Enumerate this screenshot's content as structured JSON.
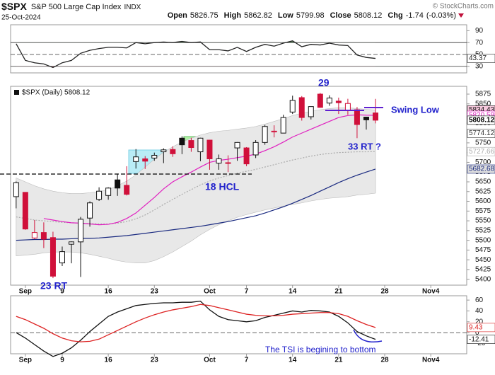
{
  "header": {
    "symbol": "$SPX",
    "name": "S&P 500 Large Cap Index",
    "exchange": "INDX",
    "date": "25-Oct-2024",
    "copyright": "© StockCharts.com",
    "quote": [
      {
        "label": "Open",
        "value": 5826.75
      },
      {
        "label": "High",
        "value": 5862.82
      },
      {
        "label": "Low",
        "value": 5799.98
      },
      {
        "label": "Close",
        "value": 5808.12
      },
      {
        "label": "Chg",
        "value": -1.74,
        "note": "(-0.03%)"
      }
    ]
  },
  "chart_data": [
    {
      "type": "line",
      "xlim": [
        -0.6,
        48.9
      ],
      "ylim": [
        19,
        100
      ],
      "yticks": [
        90,
        70,
        50,
        30
      ],
      "levels": [
        {
          "value": 70
        },
        {
          "value": 50,
          "dashed": true
        },
        {
          "value": 30
        }
      ],
      "shade": true,
      "x": [
        0,
        1,
        2,
        3,
        4,
        5,
        6,
        7,
        8,
        9,
        10,
        11,
        12,
        13,
        14,
        15,
        16,
        17,
        18,
        19,
        20,
        21,
        22,
        23,
        24,
        25,
        26,
        27,
        28,
        29,
        30,
        31,
        32,
        33,
        34,
        35,
        36,
        37,
        38,
        39
      ],
      "series": [
        {
          "color": "#222222",
          "label_bg": "#ffffff",
          "values": [
            68,
            40,
            36,
            34,
            28,
            36,
            40,
            52,
            57,
            60,
            62,
            62,
            61,
            70,
            68,
            70,
            71,
            70,
            72,
            70,
            71,
            58,
            58,
            56,
            62,
            55,
            62,
            67,
            64,
            69,
            73,
            63,
            67,
            66,
            69,
            66,
            65,
            49,
            45,
            43.37
          ]
        }
      ]
    },
    {
      "type": "candlestick",
      "legend": "$SPX (Daily) 5808.12",
      "xlim": [
        -0.6,
        48.9
      ],
      "ylim": [
        5385,
        5895
      ],
      "yticks": [
        5400,
        5425,
        5450,
        5475,
        5500,
        5525,
        5550,
        5575,
        5600,
        5625,
        5650,
        5675,
        5700,
        5725,
        5750,
        5775,
        5800,
        5825,
        5850,
        5875
      ],
      "xticks": [
        {
          "value": 1,
          "label": "Sep"
        },
        {
          "value": 5,
          "label": "9"
        },
        {
          "value": 10,
          "label": "16"
        },
        {
          "value": 15,
          "label": "23"
        },
        {
          "value": 21,
          "label": "Oct"
        },
        {
          "value": 25,
          "label": "7"
        },
        {
          "value": 30,
          "label": "14"
        },
        {
          "value": 35,
          "label": "21"
        },
        {
          "value": 40,
          "label": "28"
        },
        {
          "value": 45,
          "label": "Nov4"
        }
      ],
      "x": [
        0,
        1,
        2,
        3,
        4,
        5,
        6,
        7,
        8,
        9,
        10,
        11,
        12,
        13,
        14,
        15,
        16,
        17,
        18,
        19,
        20,
        21,
        22,
        23,
        24,
        25,
        26,
        27,
        28,
        29,
        30,
        31,
        32,
        33,
        34,
        35,
        36,
        37,
        38,
        39
      ],
      "open": [
        5612,
        5623,
        5506,
        5520,
        5507,
        5442,
        5490,
        5496,
        5557,
        5605,
        5615,
        5655,
        5641,
        5702,
        5709,
        5711,
        5727,
        5733,
        5762,
        5756,
        5727,
        5757,
        5698,
        5698,
        5737,
        5737,
        5719,
        5751,
        5778,
        5775,
        5829,
        5866,
        5817,
        5875,
        5852,
        5857,
        5833,
        5835,
        5816,
        5826.75
      ],
      "high": [
        5651,
        5623,
        5552,
        5546,
        5522,
        5484,
        5497,
        5560,
        5600,
        5636,
        5636,
        5671,
        5690,
        5734,
        5716,
        5725,
        5736,
        5741,
        5767,
        5763,
        5763,
        5758,
        5720,
        5718,
        5752,
        5739,
        5757,
        5796,
        5795,
        5822,
        5871,
        5870,
        5843,
        5878,
        5872,
        5866,
        5863,
        5842,
        5817,
        5862.82
      ],
      "low": [
        5582,
        5527,
        5503,
        5480,
        5403,
        5434,
        5441,
        5406,
        5535,
        5601,
        5604,
        5614,
        5615,
        5684,
        5683,
        5704,
        5698,
        5714,
        5721,
        5727,
        5703,
        5681,
        5681,
        5675,
        5704,
        5690,
        5711,
        5745,
        5764,
        5775,
        5824,
        5807,
        5810,
        5840,
        5845,
        5824,
        5822,
        5762,
        5784,
        5799.98
      ],
      "close": [
        5648,
        5529,
        5520,
        5503,
        5408,
        5471,
        5496,
        5554,
        5596,
        5626,
        5634,
        5634,
        5618,
        5714,
        5703,
        5718,
        5732,
        5722,
        5745,
        5738,
        5762,
        5709,
        5709,
        5699,
        5751,
        5696,
        5751,
        5792,
        5780,
        5815,
        5859,
        5815,
        5843,
        5841,
        5865,
        5853,
        5851,
        5797,
        5809,
        5808.12
      ],
      "up_color": "#111111",
      "down_color": "#d0103a",
      "band": {
        "color": "#e8e8e8",
        "label_bg": "#f6c8dc",
        "upper": [
          5660,
          5650,
          5640,
          5632,
          5626,
          5622,
          5620,
          5620,
          5622,
          5625,
          5630,
          5640,
          5652,
          5668,
          5688,
          5708,
          5726,
          5740,
          5752,
          5762,
          5770,
          5776,
          5780,
          5782,
          5785,
          5788,
          5792,
          5798,
          5805,
          5812,
          5820,
          5826,
          5831,
          5835,
          5838,
          5840,
          5840,
          5838,
          5836,
          5834.43
        ],
        "lower": [
          5460,
          5462,
          5464,
          5468,
          5470,
          5470,
          5470,
          5468,
          5464,
          5459,
          5454,
          5448,
          5444,
          5442,
          5442,
          5448,
          5458,
          5470,
          5484,
          5498,
          5514,
          5528,
          5540,
          5550,
          5559,
          5566,
          5572,
          5578,
          5583,
          5588,
          5592,
          5596,
          5601,
          5605,
          5608,
          5610,
          5612,
          5616,
          5618,
          5620.89
        ]
      },
      "overlays": [
        {
          "color": "#aaaaaa",
          "dotted": true,
          "label_bg": "#ffffff",
          "values": [
            5560,
            5556,
            5552,
            5550,
            5548,
            5546,
            5545,
            5544,
            5543,
            5542,
            5542,
            5544,
            5548,
            5555,
            5565,
            5578,
            5592,
            5605,
            5618,
            5630,
            5642,
            5652,
            5660,
            5666,
            5672,
            5677,
            5682,
            5688,
            5694,
            5700,
            5706,
            5711,
            5716,
            5720,
            5723,
            5725,
            5726,
            5727,
            5727,
            5727.66
          ]
        },
        {
          "color": "#e020c0",
          "label_bg": "#ffffff",
          "values": [
            null,
            null,
            null,
            5556,
            5552,
            5548,
            5545,
            5544,
            5542,
            5540,
            5541,
            5546,
            5556,
            5570,
            5590,
            5610,
            5632,
            5650,
            5663,
            5675,
            5688,
            5700,
            5705,
            5708,
            5712,
            5716,
            5721,
            5730,
            5740,
            5752,
            5765,
            5775,
            5785,
            5795,
            5805,
            5815,
            5820,
            5822,
            5821,
            5820.59
          ]
        },
        {
          "color": "#1a2a80",
          "label_bg": "#dddddd",
          "values": [
            5500,
            5501,
            5502,
            5502,
            5503,
            5503,
            5504,
            5505,
            5505,
            5506,
            5508,
            5510,
            5512,
            5515,
            5518,
            5521,
            5524,
            5527,
            5530,
            5533,
            5536,
            5540,
            5544,
            5548,
            5553,
            5558,
            5563,
            5570,
            5578,
            5586,
            5595,
            5605,
            5615,
            5626,
            5637,
            5648,
            5658,
            5667,
            5675,
            5682.68
          ]
        }
      ],
      "price_labels": [
        5774.12
      ],
      "annotations": [
        "29",
        "Swing Low",
        "33 RT  ?",
        "18 HCL",
        "23 RT"
      ]
    },
    {
      "type": "line",
      "xlim": [
        -0.6,
        48.9
      ],
      "ylim": [
        -39,
        68
      ],
      "yticks": [
        60,
        40,
        20,
        0,
        -20
      ],
      "levels": [
        {
          "value": 0,
          "dashed": true
        }
      ],
      "xticks": [
        {
          "value": 1,
          "label": "Sep"
        },
        {
          "value": 5,
          "label": "9"
        },
        {
          "value": 10,
          "label": "16"
        },
        {
          "value": 15,
          "label": "23"
        },
        {
          "value": 21,
          "label": "Oct"
        },
        {
          "value": 25,
          "label": "7"
        },
        {
          "value": 30,
          "label": "14"
        },
        {
          "value": 35,
          "label": "21"
        },
        {
          "value": 40,
          "label": "28"
        },
        {
          "value": 45,
          "label": "Nov4"
        }
      ],
      "x": [
        0,
        1,
        2,
        3,
        4,
        5,
        6,
        7,
        8,
        9,
        10,
        11,
        12,
        13,
        14,
        15,
        16,
        17,
        18,
        19,
        20,
        21,
        22,
        23,
        24,
        25,
        26,
        27,
        28,
        29,
        30,
        31,
        32,
        33,
        34,
        35,
        36,
        37,
        38,
        39
      ],
      "series": [
        {
          "color": "#111111",
          "label_bg": "#ffffff",
          "values": [
            0,
            -10,
            -22,
            -34,
            -44,
            -38,
            -28,
            -14,
            2,
            16,
            30,
            38,
            44,
            50,
            52,
            54,
            55,
            55,
            56,
            56,
            58,
            42,
            30,
            24,
            22,
            20,
            22,
            28,
            32,
            36,
            40,
            38,
            41,
            40,
            38,
            30,
            18,
            2,
            -6,
            -12.41
          ]
        },
        {
          "color": "#dd2222",
          "label_bg": "#ffffff",
          "values": [
            30,
            24,
            16,
            8,
            -2,
            -10,
            -15,
            -17,
            -16,
            -12,
            -4,
            4,
            12,
            20,
            27,
            33,
            38,
            42,
            45,
            48,
            52,
            50,
            46,
            42,
            38,
            34,
            32,
            31,
            31,
            32,
            34,
            35,
            36,
            37,
            37,
            35,
            30,
            22,
            15,
            9.43
          ]
        }
      ],
      "annotations": [
        "The TSI is begining to bottom"
      ]
    }
  ]
}
